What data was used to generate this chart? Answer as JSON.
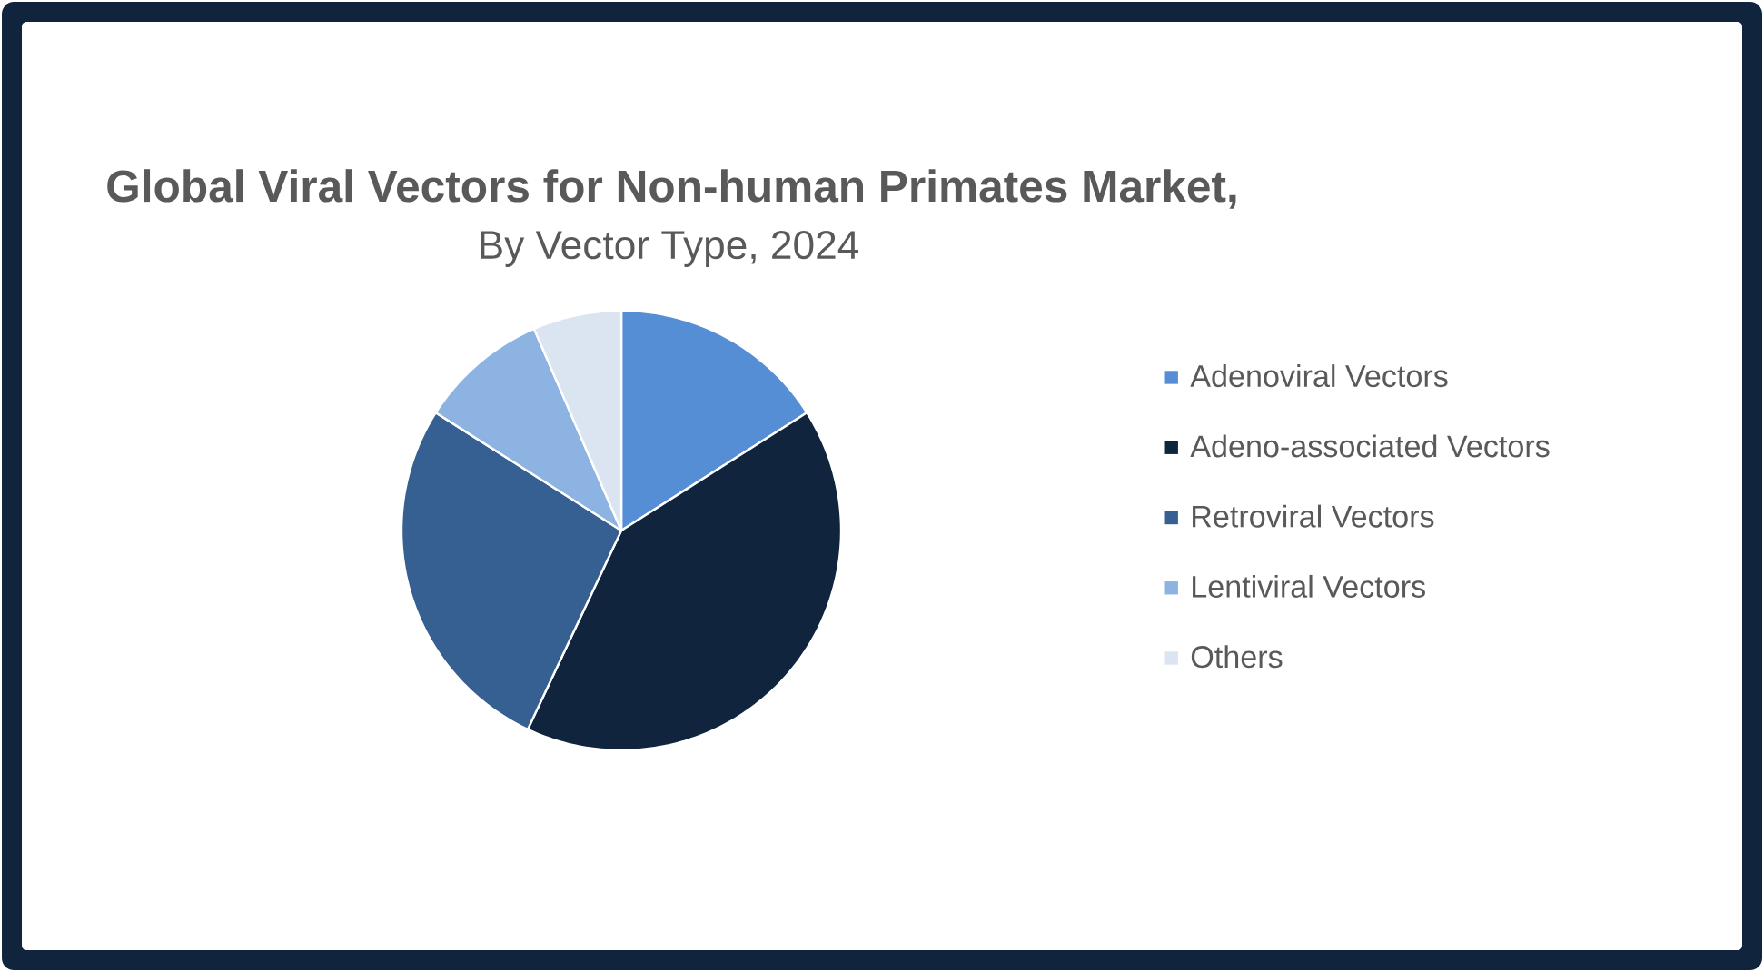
{
  "chart_data": {
    "type": "pie",
    "title": "Global Viral Vectors for Non-human Primates Market,",
    "subtitle": "By Vector Type, 2024",
    "categories": [
      "Adenoviral Vectors",
      "Adeno-associated Vectors",
      "Retroviral Vectors",
      "Lentiviral Vectors",
      "Others"
    ],
    "values": [
      16,
      41,
      27,
      9.5,
      6.5
    ],
    "colors": [
      "#558ed5",
      "#10243e",
      "#376092",
      "#8db3e2",
      "#dbe5f1"
    ],
    "legend": "right"
  }
}
